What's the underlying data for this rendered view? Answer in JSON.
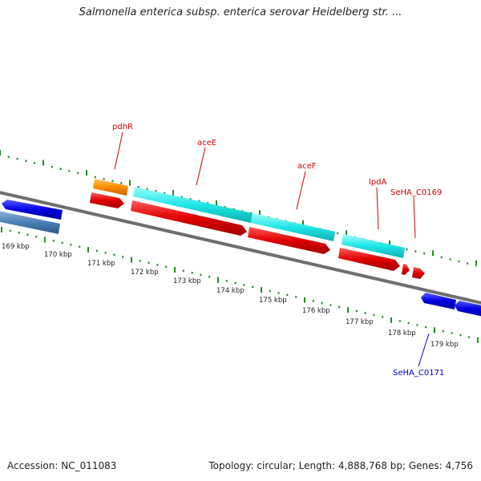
{
  "title": "Salmonella enterica subsp. enterica serovar Heidelberg str. ...",
  "accession": "Accession: NC_011083",
  "summary": "Topology: circular; Length: 4,888,768 bp; Genes: 4,756",
  "ticks": [
    "169 kbp",
    "170 kbp",
    "171 kbp",
    "172 kbp",
    "173 kbp",
    "174 kbp",
    "175 kbp",
    "176 kbp",
    "177 kbp",
    "178 kbp",
    "179 kbp"
  ],
  "gene_labels": [
    "pdhR",
    "aceE",
    "aceF",
    "lpdA",
    "SeHA_C0169",
    "SeHA_C0171"
  ],
  "colors": {
    "backbone": "#808080",
    "cds": "#e60000",
    "gene_cyan": "#16e6e6",
    "gene_orange": "#ff8c00",
    "gene_blue": "#0000e0",
    "gene_steelblue": "#4a7fb5",
    "tick": "#228b22",
    "label_red": "#cc0000",
    "label_blue": "#0000cc"
  }
}
